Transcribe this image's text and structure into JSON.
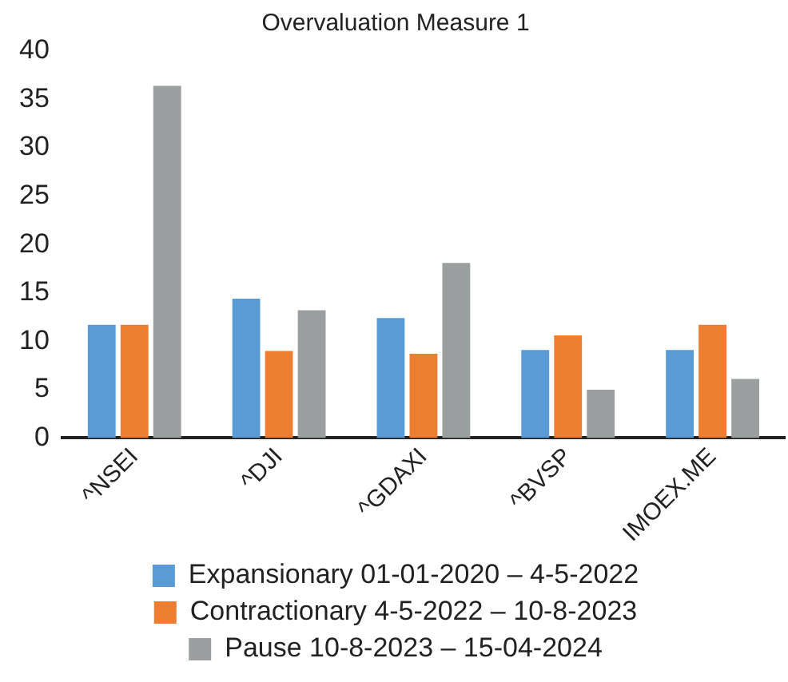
{
  "chart_data": {
    "type": "bar",
    "title": "Overvaluation Measure 1",
    "categories": [
      "^NSEI",
      "^DJI",
      "^GDAXI",
      "^BVSP",
      "IMOEX.ME"
    ],
    "series": [
      {
        "name": "Expansionary 01-01-2020 – 4-5-2022",
        "color": "#5b9bd5",
        "values": [
          11.7,
          14.4,
          12.4,
          9.1,
          9.1
        ]
      },
      {
        "name": "Contractionary 4-5-2022 – 10-8-2023",
        "color": "#ed7d31",
        "values": [
          11.7,
          9.0,
          8.7,
          10.6,
          11.7
        ]
      },
      {
        "name": "Pause 10-8-2023 – 15-04-2024",
        "color": "#9c9f9f",
        "values": [
          36.4,
          13.2,
          18.1,
          5.0,
          6.1
        ]
      }
    ],
    "ylim": [
      0,
      40
    ],
    "yticks": [
      0,
      5,
      10,
      15,
      20,
      25,
      30,
      35,
      40
    ],
    "grid": false,
    "legend": "bottom"
  }
}
